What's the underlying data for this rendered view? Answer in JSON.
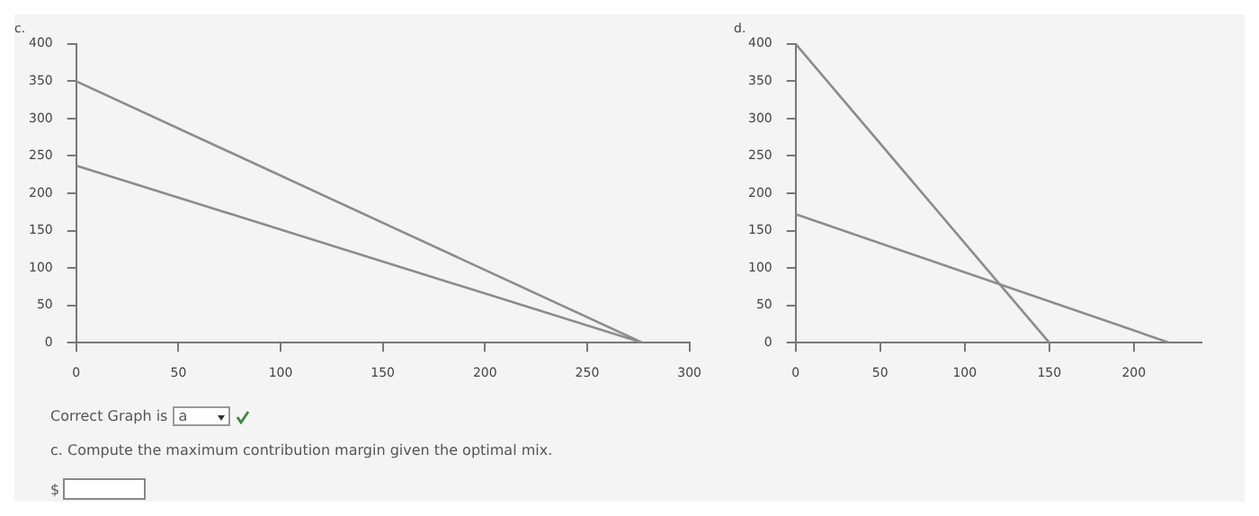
{
  "chart_data": [
    {
      "type": "line",
      "title": "c.",
      "xlim": [
        0,
        300
      ],
      "xticks": [
        0,
        50,
        100,
        150,
        200,
        250,
        300
      ],
      "ylim": [
        0,
        400
      ],
      "yticks": [
        0,
        50,
        100,
        150,
        200,
        250,
        300,
        350,
        400
      ],
      "grid": false,
      "legend": false,
      "marker": "none",
      "line_style": "solid",
      "series": [
        {
          "color": "#8c8c8c",
          "x": [
            0,
            277
          ],
          "values": [
            350,
            0
          ]
        },
        {
          "color": "#8c8c8c",
          "x": [
            0,
            277
          ],
          "values": [
            237,
            0
          ]
        }
      ],
      "annotations": [
        "Correct Graph is",
        "a",
        "c. Compute the maximum contribution margin given the optimal mix.",
        "$"
      ]
    },
    {
      "type": "line",
      "title": "d.",
      "xlim": [
        0,
        240
      ],
      "xticks": [
        0,
        50,
        100,
        150,
        200
      ],
      "ylim": [
        0,
        400
      ],
      "yticks": [
        0,
        50,
        100,
        150,
        200,
        250,
        300,
        350,
        400
      ],
      "grid": false,
      "legend": false,
      "marker": "none",
      "line_style": "solid",
      "series": [
        {
          "color": "#8c8c8c",
          "x": [
            0,
            150
          ],
          "values": [
            400,
            0
          ]
        },
        {
          "color": "#8c8c8c",
          "x": [
            0,
            221
          ],
          "values": [
            172,
            0
          ]
        }
      ]
    }
  ]
}
